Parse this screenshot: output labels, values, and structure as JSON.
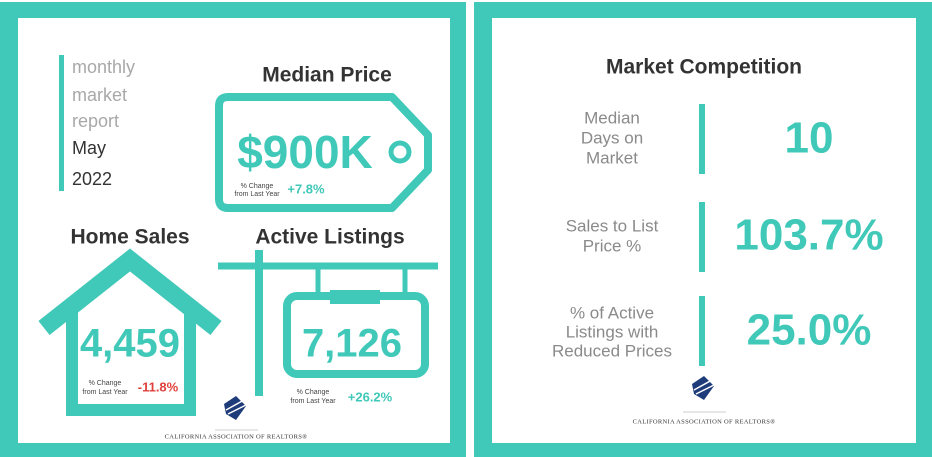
{
  "report": {
    "label_lines": [
      "monthly",
      "market",
      "report"
    ],
    "month": "May",
    "year": "2022"
  },
  "median_price": {
    "title": "Median Price",
    "value": "$900K",
    "change_lines": [
      "% Change",
      "from Last Year"
    ],
    "change": "+7.8%"
  },
  "home_sales": {
    "title": "Home Sales",
    "value": "4,459",
    "change_lines": [
      "% Change",
      "from Last Year"
    ],
    "change": "-11.8%"
  },
  "active_listings": {
    "title": "Active Listings",
    "value": "7,126",
    "change_lines": [
      "% Change",
      "from Last Year"
    ],
    "change": "+26.2%"
  },
  "market_competition": {
    "title": "Market Competition",
    "rows": [
      {
        "label_lines": [
          "Median",
          "Days on",
          "Market"
        ],
        "value": "10"
      },
      {
        "label_lines": [
          "Sales to List",
          "Price %"
        ],
        "value": "103.7%"
      },
      {
        "label_lines": [
          "% of Active",
          "Listings with",
          "Reduced Prices"
        ],
        "value": "25.0%"
      }
    ]
  },
  "footer": "CALIFORNIA ASSOCIATION OF REALTORS®"
}
